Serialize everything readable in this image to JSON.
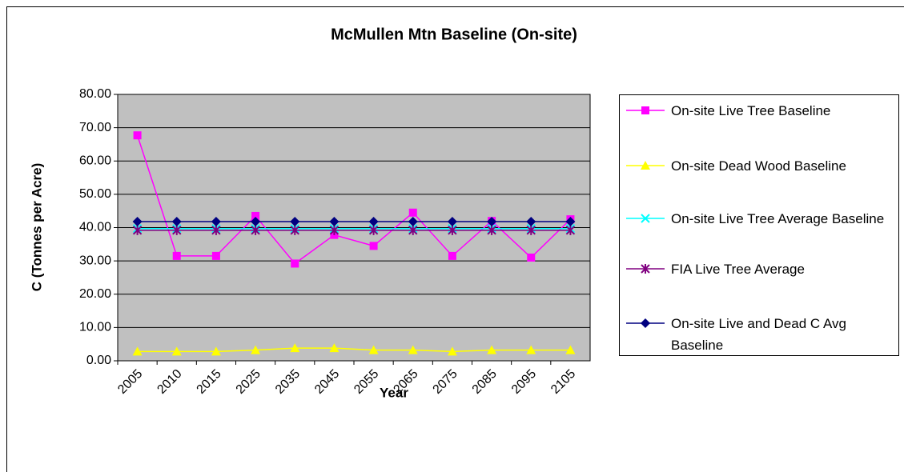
{
  "chart_data": {
    "type": "line",
    "title": "McMullen Mtn Baseline (On-site)",
    "x_label": "Year",
    "y_label": "C (Tonnes per Acre)",
    "categories": [
      "2005",
      "2010",
      "2015",
      "2025",
      "2035",
      "2045",
      "2055",
      "2065",
      "2075",
      "2085",
      "2095",
      "2105"
    ],
    "series": [
      {
        "name": "On-site Live Tree Baseline",
        "color": "#ff00ff",
        "marker": "square",
        "values": [
          67.7,
          31.5,
          31.5,
          43.5,
          29.2,
          37.8,
          34.5,
          44.5,
          31.5,
          42,
          31,
          42.5
        ]
      },
      {
        "name": "On-site Dead Wood Baseline",
        "color": "#ffff00",
        "marker": "triangle",
        "values": [
          2.8,
          2.8,
          2.8,
          3.2,
          3.8,
          3.8,
          3.2,
          3.2,
          2.8,
          3.2,
          3.2,
          3.2
        ]
      },
      {
        "name": "On-site Live Tree Average Baseline",
        "color": "#00ffff",
        "marker": "x",
        "values": [
          39.7,
          39.7,
          39.7,
          39.7,
          39.7,
          39.7,
          39.7,
          39.7,
          39.7,
          39.7,
          39.7,
          39.7
        ]
      },
      {
        "name": "FIA Live Tree Average",
        "color": "#800080",
        "marker": "asterisk",
        "values": [
          39.2,
          39.2,
          39.2,
          39.2,
          39.2,
          39.2,
          39.2,
          39.2,
          39.2,
          39.2,
          39.2,
          39.2
        ]
      },
      {
        "name": "On-site Live and Dead C Avg Baseline",
        "color": "#000080",
        "marker": "diamond",
        "values": [
          41.8,
          41.8,
          41.8,
          41.8,
          41.8,
          41.8,
          41.8,
          41.8,
          41.8,
          41.8,
          41.8,
          41.8
        ]
      }
    ],
    "ylim": [
      0,
      80
    ],
    "yticks": [
      {
        "value": 0,
        "label": "0.00"
      },
      {
        "value": 10,
        "label": "10.00"
      },
      {
        "value": 20,
        "label": "20.00"
      },
      {
        "value": 30,
        "label": "30.00"
      },
      {
        "value": 40,
        "label": "40.00"
      },
      {
        "value": 50,
        "label": "50.00"
      },
      {
        "value": 60,
        "label": "60.00"
      },
      {
        "value": 70,
        "label": "70.00"
      },
      {
        "value": 80,
        "label": "80.00"
      }
    ],
    "grid": true,
    "legend": "right"
  }
}
